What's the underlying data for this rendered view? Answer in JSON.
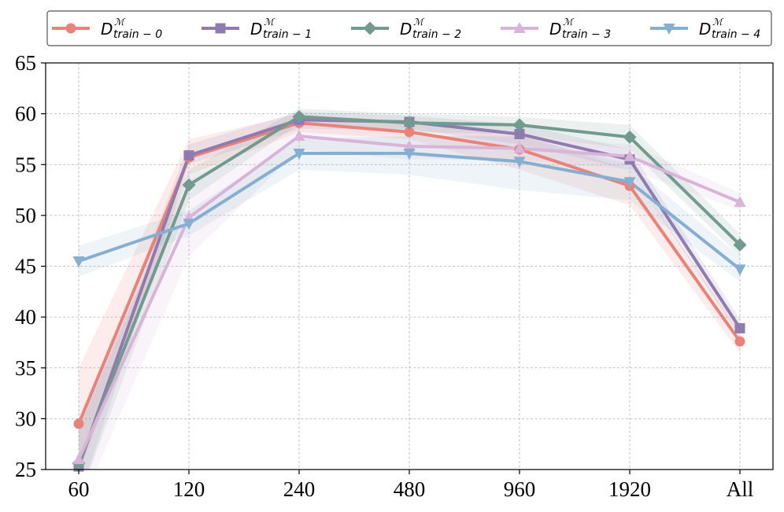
{
  "chart_data": {
    "type": "line",
    "title": "",
    "xlabel": "",
    "ylabel": "",
    "categories": [
      "60",
      "120",
      "240",
      "480",
      "960",
      "1920",
      "All"
    ],
    "ylim": [
      25,
      65
    ],
    "yticks": [
      25,
      30,
      35,
      40,
      45,
      50,
      55,
      60,
      65
    ],
    "grid": true,
    "legend_position": "top",
    "series": [
      {
        "name": "D_{train-0}^{M}",
        "label_main": "D",
        "label_sup": "ℳ",
        "label_sub": "train − 0",
        "color": "#e8837a",
        "marker": "circle",
        "values": [
          29.5,
          55.7,
          59.1,
          58.2,
          56.5,
          52.9,
          37.6
        ],
        "band_low": [
          24.5,
          54.0,
          58.2,
          57.5,
          54.5,
          51.0,
          36.5
        ],
        "band_high": [
          35.0,
          57.5,
          60.0,
          59.0,
          58.0,
          54.5,
          38.5
        ]
      },
      {
        "name": "D_{train-1}^{M}",
        "label_main": "D",
        "label_sup": "ℳ",
        "label_sub": "train − 1",
        "color": "#8f7bae",
        "marker": "square",
        "values": [
          25.3,
          55.9,
          59.4,
          59.2,
          58.0,
          55.5,
          38.9
        ],
        "band_low": [
          22.0,
          55.0,
          58.5,
          58.5,
          57.0,
          54.5,
          38.0
        ],
        "band_high": [
          29.0,
          57.0,
          60.2,
          59.8,
          59.0,
          56.5,
          39.8
        ]
      },
      {
        "name": "D_{train-2}^{M}",
        "label_main": "D",
        "label_sup": "ℳ",
        "label_sub": "train − 2",
        "color": "#739a8f",
        "marker": "diamond",
        "values": [
          25.6,
          53.0,
          59.7,
          59.1,
          58.9,
          57.7,
          47.1
        ],
        "band_low": [
          22.0,
          51.5,
          59.0,
          58.2,
          58.0,
          56.5,
          46.0
        ],
        "band_high": [
          29.0,
          54.5,
          60.5,
          60.0,
          59.7,
          58.9,
          48.2
        ]
      },
      {
        "name": "D_{train-3}^{M}",
        "label_main": "D",
        "label_sup": "ℳ",
        "label_sub": "train − 3",
        "color": "#d8b4d8",
        "marker": "triangle-up",
        "values": [
          26.0,
          49.8,
          57.8,
          56.8,
          56.6,
          55.8,
          51.3
        ],
        "band_low": [
          21.0,
          46.0,
          56.5,
          55.5,
          55.5,
          54.5,
          50.5
        ],
        "band_high": [
          30.0,
          53.5,
          59.0,
          58.0,
          57.7,
          57.0,
          52.2
        ]
      },
      {
        "name": "D_{train-4}^{M}",
        "label_main": "D",
        "label_sup": "ℳ",
        "label_sub": "train − 4",
        "color": "#85aed0",
        "marker": "triangle-down",
        "values": [
          45.5,
          49.2,
          56.1,
          56.1,
          55.3,
          53.3,
          44.7
        ],
        "band_low": [
          44.0,
          48.0,
          54.5,
          54.0,
          52.5,
          51.5,
          43.5
        ],
        "band_high": [
          47.0,
          50.5,
          57.5,
          57.8,
          57.8,
          55.0,
          46.0
        ]
      }
    ]
  }
}
